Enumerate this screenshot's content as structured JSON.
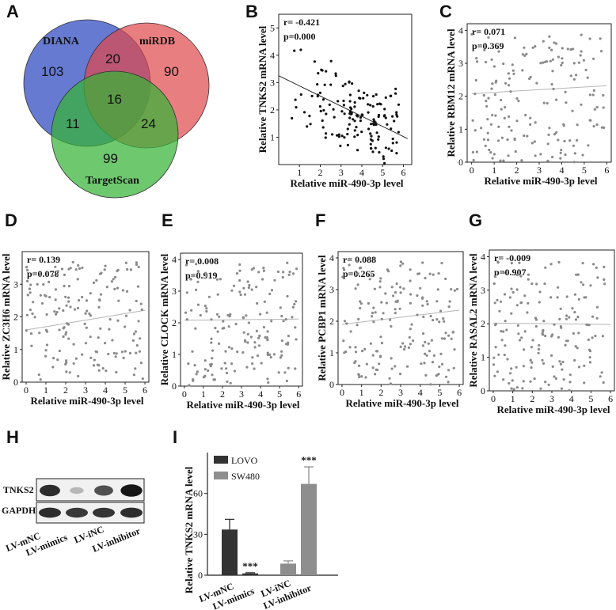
{
  "panels": {
    "A": "A",
    "B": "B",
    "C": "C",
    "D": "D",
    "E": "E",
    "F": "F",
    "G": "G",
    "H": "H",
    "I": "I"
  },
  "venn": {
    "sets": [
      {
        "name": "DIANA",
        "color": "#3b55c4"
      },
      {
        "name": "miRDB",
        "color": "#e0474c"
      },
      {
        "name": "TargetScan",
        "color": "#36b336"
      }
    ],
    "regions": {
      "diana_only": "103",
      "mirdb_only": "90",
      "targetscan_only": "99",
      "diana_mirdb": "20",
      "diana_targetscan": "11",
      "mirdb_targetscan": "24",
      "all": "16"
    }
  },
  "scatter_xlabel": "Relative miR-490-3p level",
  "scatters": [
    {
      "id": "B",
      "ylabel": "Relative TNKS2 mRNA level",
      "r": "r= -0.421",
      "p": "p=0.000",
      "xticks": [
        "1",
        "2",
        "3",
        "4",
        "5",
        "6"
      ],
      "yticks": [
        "1",
        "2",
        "3",
        "4",
        "5"
      ],
      "xlim": [
        0,
        6.4
      ],
      "ylim": [
        0,
        5.5
      ],
      "color": "#111111",
      "line": [
        [
          0,
          3.25
        ],
        [
          6.2,
          0.95
        ]
      ]
    },
    {
      "id": "C",
      "ylabel": "Relative RBM12 mRNA level",
      "r": "r= 0.071",
      "p": "p=0.369",
      "xticks": [
        "0",
        "1",
        "2",
        "3",
        "4",
        "5",
        "6"
      ],
      "yticks": [
        "0",
        "1",
        "2",
        "3",
        "4"
      ],
      "xlim": [
        -0.2,
        6.2
      ],
      "ylim": [
        0,
        4.2
      ],
      "color": "#8a8a8a",
      "line": [
        [
          0,
          2.08
        ],
        [
          6,
          2.32
        ]
      ]
    },
    {
      "id": "D",
      "ylabel": "Relative ZC3H6 mRNA level",
      "r": "r= 0.139",
      "p": "p=0.078",
      "xticks": [
        "0",
        "1",
        "2",
        "3",
        "4",
        "5",
        "6"
      ],
      "yticks": [
        "0",
        "1",
        "2",
        "3"
      ],
      "xlim": [
        -0.2,
        6.2
      ],
      "ylim": [
        0,
        4.0
      ],
      "color": "#8a8a8a",
      "line": [
        [
          0,
          1.6
        ],
        [
          6,
          2.2
        ]
      ]
    },
    {
      "id": "E",
      "ylabel": "Relative CLOCK mRNA level",
      "r": "r= 0.008",
      "p": "p=0.919",
      "xticks": [
        "0",
        "1",
        "2",
        "3",
        "4",
        "5",
        "6"
      ],
      "yticks": [
        "0",
        "1",
        "2",
        "3",
        "4"
      ],
      "xlim": [
        -0.2,
        6.2
      ],
      "ylim": [
        0,
        4.2
      ],
      "color": "#8a8a8a",
      "line": [
        [
          0,
          2.08
        ],
        [
          6,
          2.12
        ]
      ]
    },
    {
      "id": "F",
      "ylabel": "Relative PCBP1 mRNA level",
      "r": "r= 0.088",
      "p": "p=0.265",
      "xticks": [
        "0",
        "1",
        "2",
        "3",
        "4",
        "5",
        "6"
      ],
      "yticks": [
        "0",
        "1",
        "2",
        "3",
        "4"
      ],
      "xlim": [
        -0.2,
        6.2
      ],
      "ylim": [
        0,
        4.2
      ],
      "color": "#8a8a8a",
      "line": [
        [
          0,
          1.9
        ],
        [
          6,
          2.35
        ]
      ]
    },
    {
      "id": "G",
      "ylabel": "Relative RASAL2 mRNA level",
      "r": "r= -0.009",
      "p": "p=0.907",
      "xticks": [
        "0",
        "1",
        "2",
        "3",
        "4",
        "5",
        "6"
      ],
      "yticks": [
        "0",
        "1",
        "2",
        "3",
        "4"
      ],
      "xlim": [
        -0.2,
        6.2
      ],
      "ylim": [
        0,
        4.2
      ],
      "color": "#8a8a8a",
      "line": [
        [
          0,
          2.02
        ],
        [
          6,
          1.98
        ]
      ]
    }
  ],
  "blot": {
    "rows": [
      "TNKS2",
      "GAPDH"
    ],
    "lanes": [
      "LV-mNC",
      "LV-mimics",
      "LV-iNC",
      "LV-inhibitor"
    ],
    "tnks2_intensity": [
      0.85,
      0.25,
      0.7,
      0.95
    ],
    "gapdh_intensity": [
      0.85,
      0.8,
      0.82,
      0.85
    ]
  },
  "chart_data": [
    {
      "type": "scatter",
      "title": "",
      "xlabel": "Relative miR-490-3p level",
      "ylabel": "Relative TNKS2 mRNA level",
      "annotations": [
        "r= -0.421",
        "p=0.000"
      ]
    },
    {
      "type": "bar",
      "title": "",
      "xlabel": "",
      "ylabel": "Relative TNKS2 mRNA level",
      "ylim": [
        0,
        90
      ],
      "yticks": [
        "0",
        "30",
        "60"
      ],
      "categories": [
        "LV-mNC",
        "LV-mimics",
        "LV-iNC",
        "LV-inhibitor"
      ],
      "series": [
        {
          "name": "LOVO",
          "color": "#333333",
          "values": [
            33.5,
            1.3,
            null,
            null
          ],
          "errors": [
            7.5,
            0.5,
            null,
            null
          ]
        },
        {
          "name": "SW480",
          "color": "#8e8e8e",
          "values": [
            null,
            null,
            8.5,
            67
          ],
          "errors": [
            null,
            null,
            2.0,
            12.5
          ]
        }
      ],
      "significance": [
        "",
        "***",
        "",
        "***"
      ]
    }
  ]
}
